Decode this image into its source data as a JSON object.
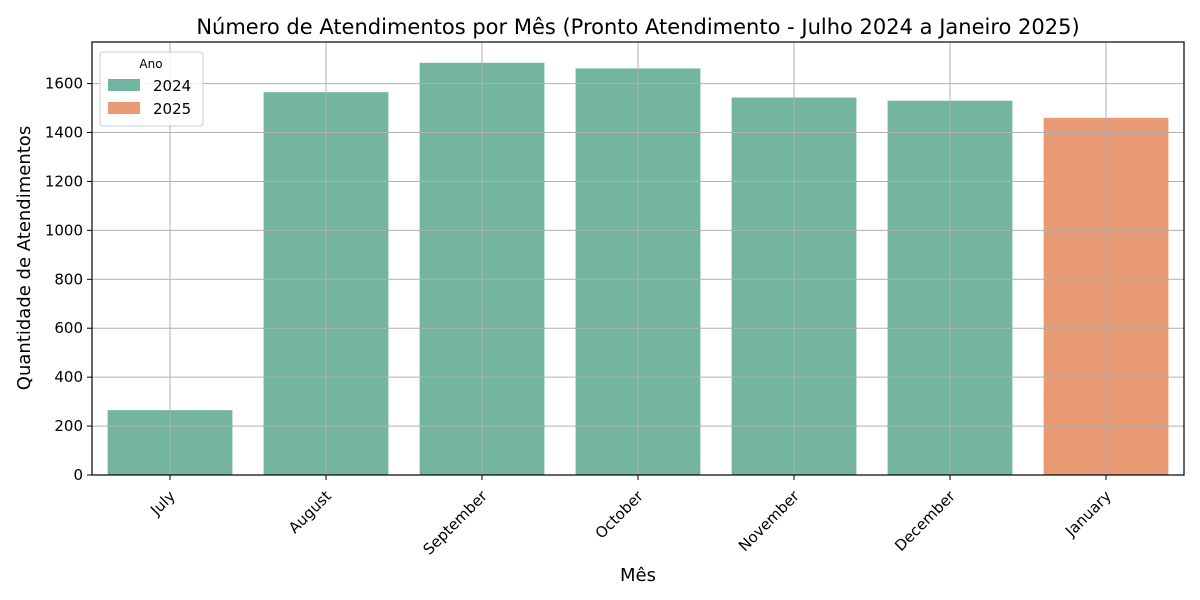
{
  "chart_data": {
    "type": "bar",
    "title": "Número de Atendimentos por Mês (Pronto Atendimento - Julho 2024 a Janeiro 2025)",
    "xlabel": "Mês",
    "ylabel": "Quantidade de Atendimentos",
    "categories": [
      "July",
      "August",
      "September",
      "October",
      "November",
      "December",
      "January"
    ],
    "values": [
      265,
      1565,
      1685,
      1662,
      1543,
      1530,
      1460
    ],
    "year": [
      "2024",
      "2024",
      "2024",
      "2024",
      "2024",
      "2024",
      "2025"
    ],
    "ylim": [
      0,
      1770
    ],
    "yticks": [
      0,
      200,
      400,
      600,
      800,
      1000,
      1200,
      1400,
      1600
    ],
    "grid": true,
    "legend": {
      "title": "Ano",
      "placement": "top-left",
      "entries": [
        {
          "label": "2024",
          "color": "#73b5a0"
        },
        {
          "label": "2025",
          "color": "#e89a75"
        }
      ]
    }
  }
}
